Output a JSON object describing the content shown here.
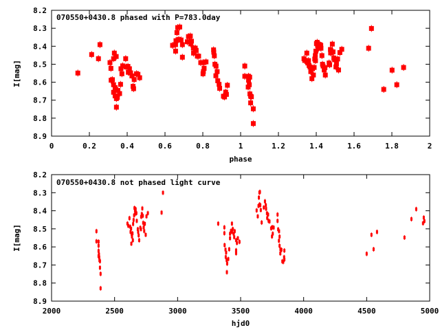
{
  "colors": {
    "points": "#ff0000",
    "axes": "#000000"
  },
  "chart_data": [
    {
      "type": "scatter",
      "title": "070550+0430.8 phased with P=783.0day",
      "xlabel": "phase",
      "ylabel": "I[mag]",
      "xlim": [
        0,
        2
      ],
      "ylim": [
        8.9,
        8.2
      ],
      "y_inverted": true,
      "xticks": [
        "0",
        "0.2",
        "0.4",
        "0.6",
        "0.8",
        "1",
        "1.2",
        "1.4",
        "1.6",
        "1.8",
        "2"
      ],
      "yticks": [
        "8.2",
        "8.3",
        "8.4",
        "8.5",
        "8.6",
        "8.7",
        "8.8",
        "8.9"
      ],
      "points": [
        [
          0.139,
          8.549
        ],
        [
          0.212,
          8.446
        ],
        [
          0.256,
          8.391
        ],
        [
          0.248,
          8.469
        ],
        [
          0.309,
          8.491
        ],
        [
          0.314,
          8.523
        ],
        [
          0.332,
          8.438
        ],
        [
          0.328,
          8.469
        ],
        [
          0.342,
          8.457
        ],
        [
          0.315,
          8.589
        ],
        [
          0.322,
          8.586
        ],
        [
          0.328,
          8.614
        ],
        [
          0.336,
          8.63
        ],
        [
          0.328,
          8.656
        ],
        [
          0.336,
          8.676
        ],
        [
          0.343,
          8.691
        ],
        [
          0.348,
          8.685
        ],
        [
          0.351,
          8.646
        ],
        [
          0.36,
          8.663
        ],
        [
          0.343,
          8.739
        ],
        [
          0.365,
          8.612
        ],
        [
          0.372,
          8.553
        ],
        [
          0.367,
          8.525
        ],
        [
          0.376,
          8.509
        ],
        [
          0.392,
          8.469
        ],
        [
          0.394,
          8.515
        ],
        [
          0.404,
          8.512
        ],
        [
          0.412,
          8.525
        ],
        [
          0.406,
          8.545
        ],
        [
          0.418,
          8.548
        ],
        [
          0.425,
          8.565
        ],
        [
          0.437,
          8.585
        ],
        [
          0.449,
          8.553
        ],
        [
          0.457,
          8.556
        ],
        [
          0.466,
          8.575
        ],
        [
          0.431,
          8.623
        ],
        [
          0.434,
          8.636
        ],
        [
          0.64,
          8.395
        ],
        [
          0.656,
          8.391
        ],
        [
          0.656,
          8.427
        ],
        [
          0.663,
          8.324
        ],
        [
          0.667,
          8.296
        ],
        [
          0.678,
          8.293
        ],
        [
          0.658,
          8.369
        ],
        [
          0.673,
          8.362
        ],
        [
          0.685,
          8.365
        ],
        [
          0.692,
          8.391
        ],
        [
          0.692,
          8.461
        ],
        [
          0.718,
          8.375
        ],
        [
          0.724,
          8.346
        ],
        [
          0.734,
          8.343
        ],
        [
          0.74,
          8.372
        ],
        [
          0.736,
          8.387
        ],
        [
          0.75,
          8.41
        ],
        [
          0.76,
          8.41
        ],
        [
          0.765,
          8.423
        ],
        [
          0.751,
          8.438
        ],
        [
          0.771,
          8.455
        ],
        [
          0.778,
          8.455
        ],
        [
          0.789,
          8.491
        ],
        [
          0.801,
          8.491
        ],
        [
          0.817,
          8.487
        ],
        [
          0.807,
          8.523
        ],
        [
          0.803,
          8.541
        ],
        [
          0.801,
          8.553
        ],
        [
          0.857,
          8.42
        ],
        [
          0.858,
          8.433
        ],
        [
          0.861,
          8.453
        ],
        [
          0.864,
          8.5
        ],
        [
          0.87,
          8.51
        ],
        [
          0.876,
          8.541
        ],
        [
          0.869,
          8.564
        ],
        [
          0.879,
          8.592
        ],
        [
          0.886,
          8.612
        ],
        [
          0.889,
          8.634
        ],
        [
          0.93,
          8.617
        ],
        [
          0.921,
          8.655
        ],
        [
          0.925,
          8.668
        ],
        [
          0.909,
          8.678
        ],
        [
          0.915,
          8.682
        ],
        [
          1.022,
          8.51
        ],
        [
          1.022,
          8.567
        ],
        [
          1.042,
          8.567
        ],
        [
          1.048,
          8.572
        ],
        [
          1.042,
          8.589
        ],
        [
          1.046,
          8.614
        ],
        [
          1.04,
          8.627
        ],
        [
          1.049,
          8.665
        ],
        [
          1.053,
          8.678
        ],
        [
          1.057,
          8.681
        ],
        [
          1.053,
          8.715
        ],
        [
          1.067,
          8.748
        ],
        [
          1.067,
          8.83
        ],
        [
          1.335,
          8.469
        ],
        [
          1.339,
          8.479
        ],
        [
          1.35,
          8.438
        ],
        [
          1.352,
          8.484
        ],
        [
          1.359,
          8.48
        ],
        [
          1.355,
          8.493
        ],
        [
          1.362,
          8.507
        ],
        [
          1.367,
          8.515
        ],
        [
          1.371,
          8.541
        ],
        [
          1.377,
          8.58
        ],
        [
          1.385,
          8.56
        ],
        [
          1.38,
          8.525
        ],
        [
          1.389,
          8.518
        ],
        [
          1.392,
          8.471
        ],
        [
          1.395,
          8.452
        ],
        [
          1.396,
          8.48
        ],
        [
          1.398,
          8.427
        ],
        [
          1.401,
          8.385
        ],
        [
          1.405,
          8.378
        ],
        [
          1.407,
          8.395
        ],
        [
          1.412,
          8.411
        ],
        [
          1.419,
          8.391
        ],
        [
          1.425,
          8.411
        ],
        [
          1.424,
          8.395
        ],
        [
          1.43,
          8.452
        ],
        [
          1.433,
          8.5
        ],
        [
          1.436,
          8.51
        ],
        [
          1.442,
          8.532
        ],
        [
          1.446,
          8.519
        ],
        [
          1.448,
          8.56
        ],
        [
          1.468,
          8.493
        ],
        [
          1.471,
          8.503
        ],
        [
          1.475,
          8.418
        ],
        [
          1.476,
          8.437
        ],
        [
          1.485,
          8.388
        ],
        [
          1.489,
          8.431
        ],
        [
          1.493,
          8.465
        ],
        [
          1.497,
          8.475
        ],
        [
          1.504,
          8.515
        ],
        [
          1.507,
          8.497
        ],
        [
          1.513,
          8.471
        ],
        [
          1.518,
          8.532
        ],
        [
          1.525,
          8.435
        ],
        [
          1.535,
          8.417
        ],
        [
          1.677,
          8.411
        ],
        [
          1.692,
          8.301
        ],
        [
          1.757,
          8.64
        ],
        [
          1.801,
          8.533
        ],
        [
          1.826,
          8.614
        ],
        [
          1.862,
          8.518
        ]
      ]
    },
    {
      "type": "scatter",
      "title": "070550+0430.8 not phased light curve",
      "xlabel": "hjd0",
      "ylabel": "I[mag]",
      "xlim": [
        2000,
        5000
      ],
      "ylim": [
        8.9,
        8.2
      ],
      "y_inverted": true,
      "xticks": [
        "2000",
        "2500",
        "3000",
        "3500",
        "4000",
        "4500",
        "5000"
      ],
      "yticks": [
        "8.2",
        "8.3",
        "8.4",
        "8.5",
        "8.6",
        "8.7",
        "8.8",
        "8.9"
      ],
      "points": [
        [
          2356,
          8.513
        ],
        [
          2356,
          8.569
        ],
        [
          2373,
          8.571
        ],
        [
          2373,
          8.593
        ],
        [
          2373,
          8.622
        ],
        [
          2376,
          8.641
        ],
        [
          2373,
          8.651
        ],
        [
          2378,
          8.658
        ],
        [
          2380,
          8.674
        ],
        [
          2384,
          8.679
        ],
        [
          2384,
          8.715
        ],
        [
          2389,
          8.749
        ],
        [
          2389,
          8.829
        ],
        [
          2602,
          8.471
        ],
        [
          2618,
          8.441
        ],
        [
          2609,
          8.483
        ],
        [
          2624,
          8.489
        ],
        [
          2631,
          8.499
        ],
        [
          2627,
          8.517
        ],
        [
          2636,
          8.53
        ],
        [
          2642,
          8.525
        ],
        [
          2638,
          8.543
        ],
        [
          2645,
          8.563
        ],
        [
          2633,
          8.582
        ],
        [
          2647,
          8.473
        ],
        [
          2651,
          8.451
        ],
        [
          2655,
          8.425
        ],
        [
          2658,
          8.385
        ],
        [
          2662,
          8.398
        ],
        [
          2667,
          8.391
        ],
        [
          2664,
          8.416
        ],
        [
          2673,
          8.413
        ],
        [
          2676,
          8.456
        ],
        [
          2684,
          8.502
        ],
        [
          2687,
          8.517
        ],
        [
          2691,
          8.536
        ],
        [
          2695,
          8.563
        ],
        [
          2704,
          8.494
        ],
        [
          2709,
          8.502
        ],
        [
          2711,
          8.433
        ],
        [
          2716,
          8.418
        ],
        [
          2720,
          8.387
        ],
        [
          2724,
          8.428
        ],
        [
          2727,
          8.467
        ],
        [
          2731,
          8.492
        ],
        [
          2735,
          8.512
        ],
        [
          2740,
          8.472
        ],
        [
          2747,
          8.533
        ],
        [
          2753,
          8.431
        ],
        [
          2764,
          8.413
        ],
        [
          2873,
          8.41
        ],
        [
          2884,
          8.3
        ],
        [
          3322,
          8.471
        ],
        [
          3371,
          8.492
        ],
        [
          3371,
          8.524
        ],
        [
          3431,
          8.471
        ],
        [
          3373,
          8.59
        ],
        [
          3380,
          8.615
        ],
        [
          3385,
          8.631
        ],
        [
          3382,
          8.656
        ],
        [
          3389,
          8.673
        ],
        [
          3393,
          8.692
        ],
        [
          3402,
          8.667
        ],
        [
          3391,
          8.74
        ],
        [
          3409,
          8.613
        ],
        [
          3416,
          8.552
        ],
        [
          3416,
          8.527
        ],
        [
          3424,
          8.511
        ],
        [
          3431,
          8.517
        ],
        [
          3438,
          8.501
        ],
        [
          3445,
          8.527
        ],
        [
          3449,
          8.546
        ],
        [
          3453,
          8.513
        ],
        [
          3464,
          8.563
        ],
        [
          3464,
          8.619
        ],
        [
          3464,
          8.635
        ],
        [
          3471,
          8.578
        ],
        [
          3478,
          8.552
        ],
        [
          3491,
          8.572
        ],
        [
          3627,
          8.398
        ],
        [
          3636,
          8.431
        ],
        [
          3642,
          8.373
        ],
        [
          3645,
          8.327
        ],
        [
          3649,
          8.299
        ],
        [
          3653,
          8.296
        ],
        [
          3651,
          8.365
        ],
        [
          3656,
          8.369
        ],
        [
          3660,
          8.396
        ],
        [
          3667,
          8.465
        ],
        [
          3684,
          8.382
        ],
        [
          3693,
          8.348
        ],
        [
          3700,
          8.369
        ],
        [
          3702,
          8.389
        ],
        [
          3709,
          8.414
        ],
        [
          3711,
          8.44
        ],
        [
          3718,
          8.421
        ],
        [
          3722,
          8.456
        ],
        [
          3729,
          8.459
        ],
        [
          3742,
          8.497
        ],
        [
          3751,
          8.491
        ],
        [
          3749,
          8.542
        ],
        [
          3755,
          8.527
        ],
        [
          3762,
          8.493
        ],
        [
          3793,
          8.421
        ],
        [
          3793,
          8.456
        ],
        [
          3798,
          8.503
        ],
        [
          3805,
          8.513
        ],
        [
          3809,
          8.543
        ],
        [
          3804,
          8.566
        ],
        [
          3809,
          8.594
        ],
        [
          3816,
          8.614
        ],
        [
          3815,
          8.636
        ],
        [
          3824,
          8.616
        ],
        [
          3831,
          8.68
        ],
        [
          3838,
          8.683
        ],
        [
          3845,
          8.657
        ],
        [
          3847,
          8.67
        ],
        [
          3847,
          8.62
        ],
        [
          4500,
          8.638
        ],
        [
          4538,
          8.533
        ],
        [
          4555,
          8.613
        ],
        [
          4582,
          8.517
        ],
        [
          4800,
          8.548
        ],
        [
          4855,
          8.446
        ],
        [
          4893,
          8.391
        ],
        [
          4947,
          8.469
        ],
        [
          4953,
          8.438
        ],
        [
          4958,
          8.457
        ]
      ]
    }
  ]
}
